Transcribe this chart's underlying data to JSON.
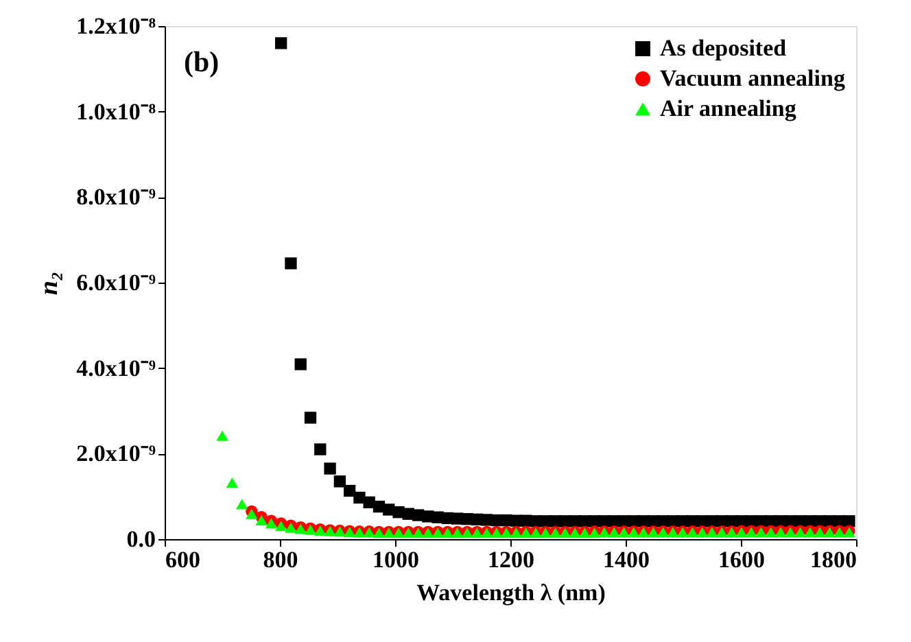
{
  "chart_data": {
    "type": "scatter",
    "xlabel": "Wavelength λ (nm)",
    "ylabel": "n₂",
    "annotations": [
      "(b)"
    ],
    "xlim": [
      600,
      1800
    ],
    "xticks": [
      600,
      800,
      1000,
      1200,
      1400,
      1600,
      1800
    ],
    "ylim": [
      0,
      1.2e-08
    ],
    "yticks": [
      {
        "value": 0,
        "label": "0.0"
      },
      {
        "value": 2e-09,
        "label": "2.0x10⁻⁹"
      },
      {
        "value": 4e-09,
        "label": "4.0x10⁻⁹"
      },
      {
        "value": 6e-09,
        "label": "6.0x10⁻⁹"
      },
      {
        "value": 8e-09,
        "label": "8.0x10⁻⁹"
      },
      {
        "value": 1e-08,
        "label": "1.0x10⁻⁸"
      },
      {
        "value": 1.2e-08,
        "label": "1.2x10⁻⁸"
      }
    ],
    "grid": false,
    "legend": "top right",
    "series": [
      {
        "name": "As deposited",
        "color": "#000000",
        "marker": "square",
        "x": [
          802,
          819,
          836,
          853,
          870,
          887,
          904,
          921,
          938,
          955,
          972,
          989,
          1006,
          1023,
          1040,
          1057,
          1074,
          1091,
          1108,
          1125,
          1142,
          1159,
          1176,
          1193,
          1210,
          1227,
          1244,
          1261,
          1278,
          1295,
          1312,
          1329,
          1346,
          1363,
          1380,
          1397,
          1414,
          1431,
          1448,
          1465,
          1482,
          1499,
          1516,
          1533,
          1550,
          1567,
          1584,
          1601,
          1618,
          1635,
          1652,
          1669,
          1686,
          1703,
          1720,
          1737,
          1754,
          1771,
          1788
        ],
        "values": [
          1.16e-08,
          6.45e-09,
          4.09e-09,
          2.84e-09,
          2.1e-09,
          1.65e-09,
          1.35e-09,
          1.13e-09,
          9.7e-10,
          8.6e-10,
          7.6e-10,
          6.9e-10,
          6.3e-10,
          5.9e-10,
          5.6e-10,
          5.3e-10,
          5.1e-10,
          4.9e-10,
          4.8e-10,
          4.7e-10,
          4.6e-10,
          4.5e-10,
          4.4e-10,
          4.4e-10,
          4.3e-10,
          4.3e-10,
          4.2e-10,
          4.2e-10,
          4.2e-10,
          4.2e-10,
          4.2e-10,
          4.2e-10,
          4.2e-10,
          4.2e-10,
          4.2e-10,
          4.2e-10,
          4.2e-10,
          4.2e-10,
          4.2e-10,
          4.2e-10,
          4.2e-10,
          4.2e-10,
          4.2e-10,
          4.2e-10,
          4.2e-10,
          4.2e-10,
          4.2e-10,
          4.2e-10,
          4.2e-10,
          4.2e-10,
          4.2e-10,
          4.2e-10,
          4.2e-10,
          4.2e-10,
          4.2e-10,
          4.2e-10,
          4.2e-10,
          4.2e-10,
          4.2e-10
        ]
      },
      {
        "name": "Vacuum annealing",
        "color": "#ff0000",
        "marker": "circle",
        "x": [
          751,
          768,
          785,
          802,
          819,
          836,
          853,
          870,
          887,
          904,
          921,
          938,
          955,
          972,
          989,
          1006,
          1023,
          1040,
          1057,
          1074,
          1091,
          1108,
          1125,
          1142,
          1159,
          1176,
          1193,
          1210,
          1227,
          1244,
          1261,
          1278,
          1295,
          1312,
          1329,
          1346,
          1363,
          1380,
          1397,
          1414,
          1431,
          1448,
          1465,
          1482,
          1499,
          1516,
          1533,
          1550,
          1567,
          1584,
          1601,
          1618,
          1635,
          1652,
          1669,
          1686,
          1703,
          1720,
          1737,
          1754,
          1771,
          1788
        ],
        "values": [
          6.5e-10,
          5.2e-10,
          4.3e-10,
          3.7e-10,
          3.2e-10,
          2.8e-10,
          2.5e-10,
          2.3e-10,
          2.1e-10,
          2e-10,
          1.9e-10,
          1.8e-10,
          1.8e-10,
          1.7e-10,
          1.7e-10,
          1.7e-10,
          1.7e-10,
          1.7e-10,
          1.7e-10,
          1.7e-10,
          1.7e-10,
          1.7e-10,
          1.7e-10,
          1.7e-10,
          1.7e-10,
          1.7e-10,
          1.7e-10,
          1.7e-10,
          1.7e-10,
          1.7e-10,
          1.7e-10,
          1.7e-10,
          1.7e-10,
          1.7e-10,
          1.7e-10,
          1.8e-10,
          1.8e-10,
          1.8e-10,
          1.8e-10,
          1.8e-10,
          1.8e-10,
          1.8e-10,
          1.8e-10,
          1.8e-10,
          1.8e-10,
          1.8e-10,
          1.8e-10,
          1.8e-10,
          1.8e-10,
          1.8e-10,
          1.9e-10,
          1.9e-10,
          1.9e-10,
          1.9e-10,
          1.9e-10,
          1.9e-10,
          1.9e-10,
          1.9e-10,
          1.9e-10,
          1.9e-10,
          1.9e-10,
          1.9e-10
        ]
      },
      {
        "name": "Air annealing",
        "color": "#00ff00",
        "marker": "triangle",
        "x": [
          700,
          717,
          734,
          751,
          768,
          785,
          802,
          819,
          836,
          853,
          870,
          887,
          904,
          921,
          938,
          955,
          972,
          989,
          1006,
          1023,
          1040,
          1057,
          1074,
          1091,
          1108,
          1125,
          1142,
          1159,
          1176,
          1193,
          1210,
          1227,
          1244,
          1261,
          1278,
          1295,
          1312,
          1329,
          1346,
          1363,
          1380,
          1397,
          1414,
          1431,
          1448,
          1465,
          1482,
          1499,
          1516,
          1533,
          1550,
          1567,
          1584,
          1601,
          1618,
          1635,
          1652,
          1669,
          1686,
          1703,
          1720,
          1737,
          1754,
          1771,
          1788
        ],
        "values": [
          2.42e-09,
          1.32e-09,
          8.2e-10,
          5.9e-10,
          4.4e-10,
          3.7e-10,
          3.1e-10,
          2.7e-10,
          2.4e-10,
          2.2e-10,
          2e-10,
          1.9e-10,
          1.8e-10,
          1.7e-10,
          1.6e-10,
          1.6e-10,
          1.5e-10,
          1.5e-10,
          1.5e-10,
          1.5e-10,
          1.5e-10,
          1.5e-10,
          1.5e-10,
          1.5e-10,
          1.5e-10,
          1.5e-10,
          1.5e-10,
          1.5e-10,
          1.5e-10,
          1.5e-10,
          1.5e-10,
          1.5e-10,
          1.5e-10,
          1.5e-10,
          1.5e-10,
          1.5e-10,
          1.5e-10,
          1.5e-10,
          1.5e-10,
          1.6e-10,
          1.6e-10,
          1.6e-10,
          1.6e-10,
          1.6e-10,
          1.6e-10,
          1.6e-10,
          1.6e-10,
          1.6e-10,
          1.6e-10,
          1.6e-10,
          1.6e-10,
          1.6e-10,
          1.6e-10,
          1.6e-10,
          1.6e-10,
          1.6e-10,
          1.6e-10,
          1.6e-10,
          1.6e-10,
          1.6e-10,
          1.6e-10,
          1.6e-10,
          1.6e-10,
          1.6e-10,
          1.6e-10
        ]
      }
    ]
  }
}
